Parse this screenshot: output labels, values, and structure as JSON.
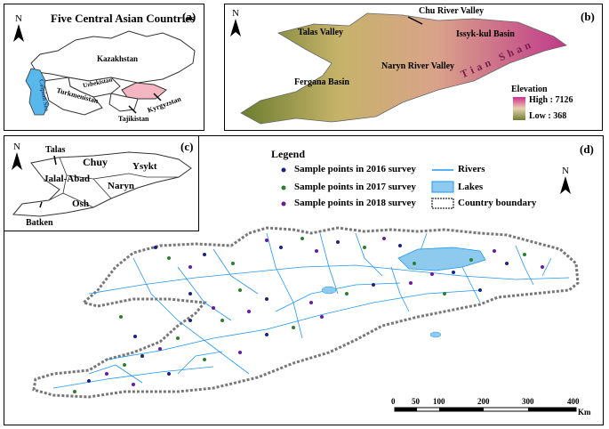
{
  "panel_a": {
    "title": "Five Central Asian Countries",
    "label": "(a)",
    "countries": [
      "Kazakhstan",
      "Uzbekistan",
      "Turkmenistan",
      "Kyrgyzstan",
      "Tajikistan"
    ],
    "sea": "Caspian Sea"
  },
  "panel_b": {
    "label": "(b)",
    "places": [
      "Chu River Valley",
      "Talas Valley",
      "Issyk-kul Basin",
      "Naryn River Valley",
      "Fergana Basin",
      "Tian Shan"
    ],
    "elevation_title": "Elevation",
    "elevation_high": "High : 7126",
    "elevation_low": "Low : 368"
  },
  "panel_c": {
    "label": "(c)",
    "regions": [
      "Talas",
      "Chuy",
      "Ysykt",
      "Jalal-Abad",
      "Naryn",
      "Osh",
      "Batken"
    ]
  },
  "panel_d": {
    "label": "(d)",
    "legend_title": "Legend",
    "legend": [
      {
        "label": "Sample points in 2016 survey",
        "color": "#1a237e"
      },
      {
        "label": "Sample points in 2017 survey",
        "color": "#2e7d32"
      },
      {
        "label": "Sample points in 2018 survey",
        "color": "#6a1b9a"
      },
      {
        "label": "Rivers",
        "color": "#2196f3"
      },
      {
        "label": "Lakes",
        "color": "#8ec9ee"
      },
      {
        "label": "Country boundary",
        "color": "#777777"
      }
    ],
    "scale_ticks": [
      "0",
      "50",
      "100",
      "200",
      "300",
      "400"
    ],
    "scale_unit": "Km"
  },
  "north_label": "N",
  "colors": {
    "kyrgyzstan_highlight": "#f4b6c2",
    "caspian": "#58b8ea",
    "lake": "#8ec9ee",
    "river": "#2196f3"
  }
}
